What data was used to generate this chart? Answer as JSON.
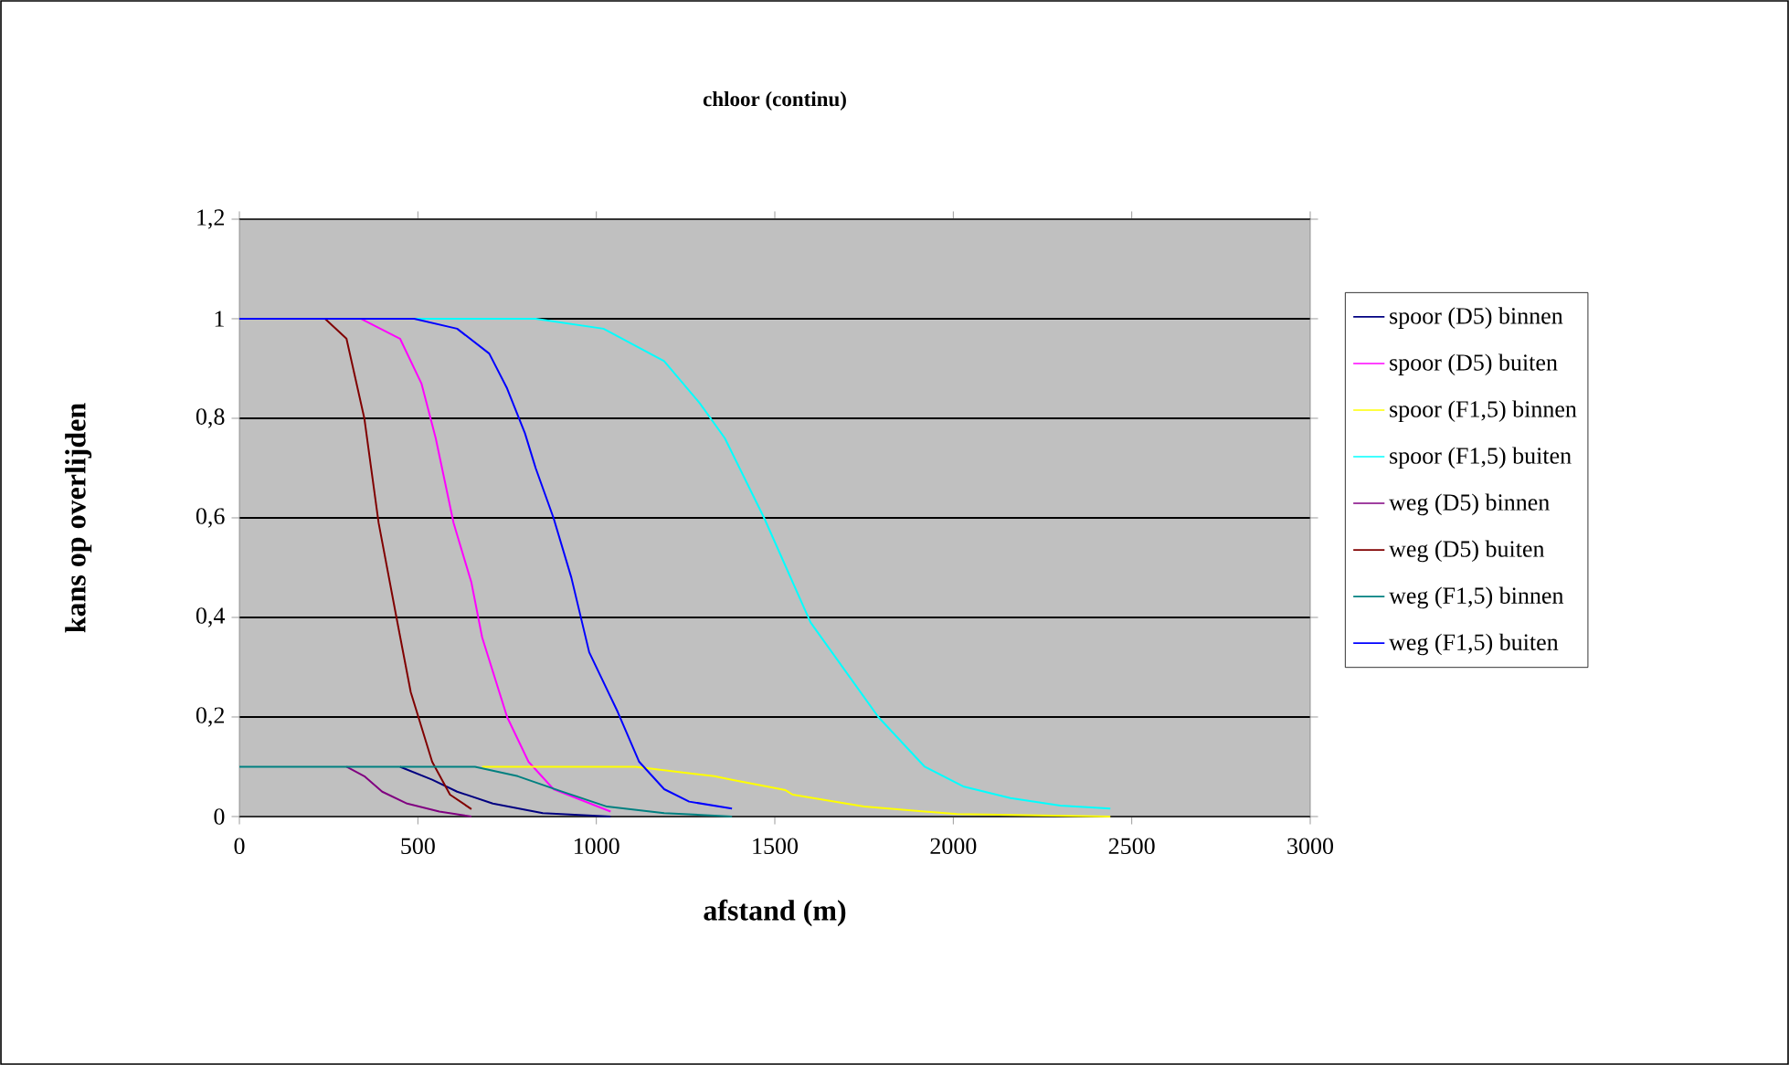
{
  "chart_data": {
    "type": "line",
    "title": "chloor (continu)",
    "xlabel": "afstand (m)",
    "ylabel": "kans op overlijden",
    "xlim": [
      0,
      3000
    ],
    "xticks": [
      0,
      500,
      1000,
      1500,
      2000,
      2500,
      3000
    ],
    "ylim": [
      0,
      1.2
    ],
    "yticks": [
      0,
      {
        "value": 0.2,
        "label": "0,2"
      },
      {
        "value": 0.4,
        "label": "0,4"
      },
      {
        "value": 0.6,
        "label": "0,6"
      },
      {
        "value": 0.8,
        "label": "0,8"
      },
      1,
      {
        "value": 1.2,
        "label": "1,2"
      }
    ],
    "grid": "y",
    "legend": "right",
    "marker": "none",
    "line_style": "solid",
    "series": [
      {
        "name": "spoor (D5) binnen",
        "color": "#000080",
        "x": [
          450,
          540,
          610,
          710,
          850,
          1040
        ],
        "values": [
          0.1,
          0.074,
          0.05,
          0.026,
          0.007,
          0
        ]
      },
      {
        "name": "spoor (D5) buiten",
        "color": "#ff00ff",
        "x": [
          0,
          340,
          450,
          510,
          550,
          600,
          650,
          680,
          750,
          810,
          880,
          1040
        ],
        "values": [
          1,
          1,
          0.96,
          0.87,
          0.76,
          0.59,
          0.47,
          0.36,
          0.2,
          0.11,
          0.055,
          0.01
        ]
      },
      {
        "name": "spoor (F1,5) binnen",
        "color": "#ffff00",
        "x": [
          680,
          1110,
          1330,
          1380,
          1530,
          1550,
          1750,
          2010,
          2440
        ],
        "values": [
          0.1,
          0.1,
          0.081,
          0.074,
          0.053,
          0.044,
          0.02,
          0.005,
          0
        ]
      },
      {
        "name": "spoor (F1,5) buiten",
        "color": "#00ffff",
        "x": [
          0,
          830,
          1020,
          1190,
          1290,
          1360,
          1470,
          1600,
          1790,
          1920,
          2030,
          2160,
          2300,
          2440
        ],
        "values": [
          1,
          1,
          0.98,
          0.915,
          0.83,
          0.76,
          0.6,
          0.39,
          0.2,
          0.1,
          0.06,
          0.037,
          0.022,
          0.016
        ]
      },
      {
        "name": "weg (D5) binnen",
        "color": "#800080",
        "x": [
          300,
          350,
          400,
          470,
          560,
          650
        ],
        "values": [
          0.1,
          0.081,
          0.05,
          0.026,
          0.01,
          0
        ]
      },
      {
        "name": "weg (D5) buiten",
        "color": "#800000",
        "x": [
          0,
          240,
          300,
          350,
          390,
          440,
          480,
          540,
          590,
          650
        ],
        "values": [
          1,
          1,
          0.96,
          0.8,
          0.59,
          0.4,
          0.25,
          0.11,
          0.044,
          0.015
        ]
      },
      {
        "name": "weg (F1,5) binnen",
        "color": "#008080",
        "x": [
          0,
          660,
          780,
          900,
          1030,
          1190,
          1380
        ],
        "values": [
          0.1,
          0.1,
          0.081,
          0.051,
          0.02,
          0.007,
          0
        ]
      },
      {
        "name": "weg (F1,5) buiten",
        "color": "#0000ff",
        "x": [
          0,
          490,
          610,
          700,
          750,
          800,
          830,
          880,
          930,
          980,
          1060,
          1120,
          1190,
          1260,
          1380
        ],
        "values": [
          1,
          1,
          0.98,
          0.93,
          0.86,
          0.77,
          0.7,
          0.6,
          0.48,
          0.33,
          0.21,
          0.11,
          0.055,
          0.03,
          0.016
        ]
      }
    ]
  }
}
